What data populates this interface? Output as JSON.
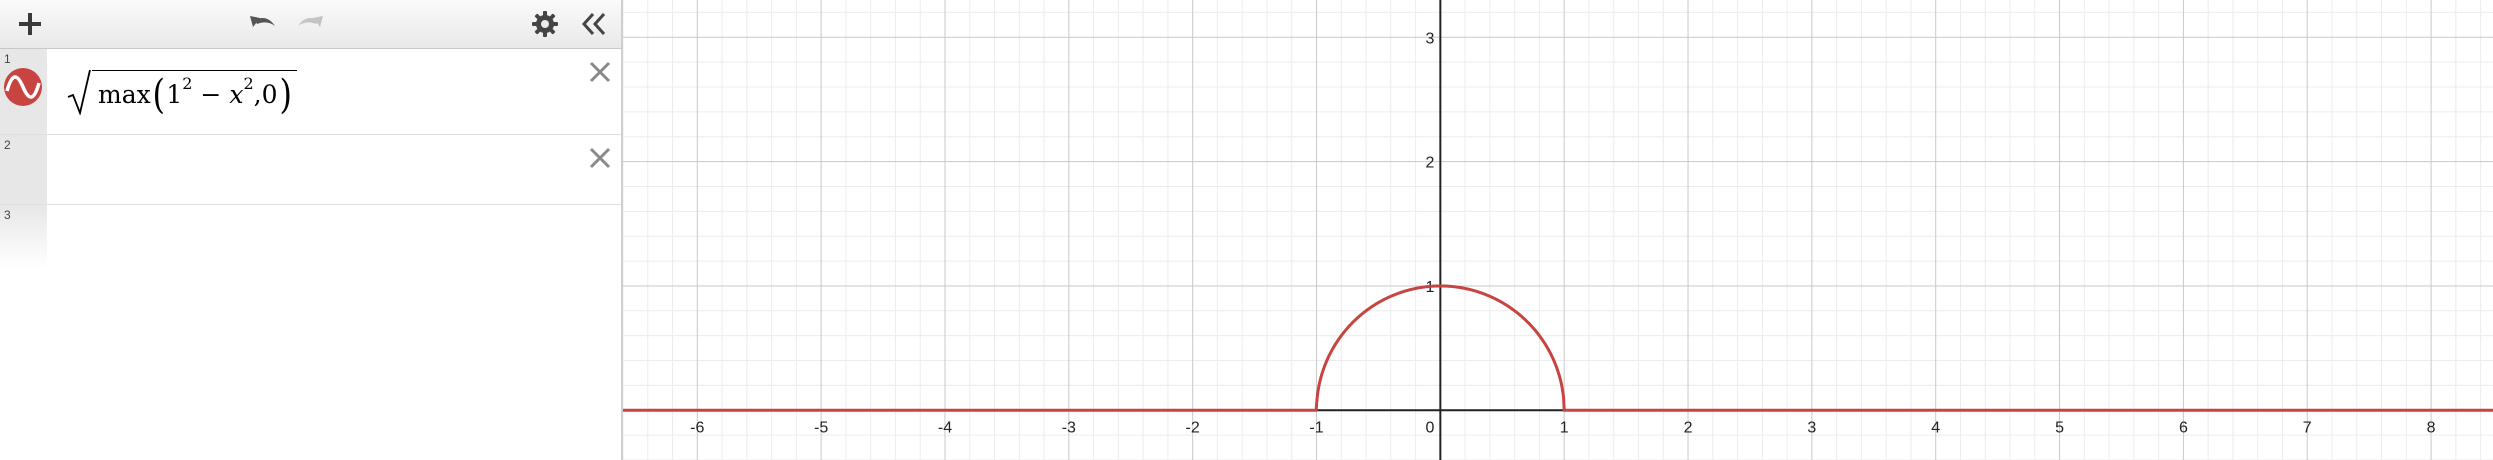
{
  "toolbar": {
    "add_icon": "plus-icon",
    "undo_icon": "undo-icon",
    "redo_icon": "redo-icon",
    "settings_icon": "gear-icon",
    "collapse_icon": "double-chevron-left-icon"
  },
  "expressions": [
    {
      "number": "1",
      "color": "#c74440",
      "latex": "\\sqrt{\\max\\left(1^{2}-x^{2},0\\right)}",
      "parts": {
        "func": "max",
        "base": "1",
        "exp1": "2",
        "minus": "−",
        "var": "x",
        "exp2": "2",
        "rest": ",0"
      }
    },
    {
      "number": "2",
      "latex": ""
    },
    {
      "number": "3",
      "latex": ""
    }
  ],
  "graph": {
    "curve_color": "#c74440",
    "x_tick_labels": [
      "-6",
      "-5",
      "-4",
      "-3",
      "-2",
      "-1",
      "0",
      "1",
      "2",
      "3",
      "4",
      "5",
      "6",
      "7",
      "8"
    ],
    "y_tick_labels": [
      "1",
      "2",
      "3"
    ],
    "x_range": [
      -6.6,
      8.5
    ],
    "y_range": [
      -0.4,
      3.3
    ]
  }
}
